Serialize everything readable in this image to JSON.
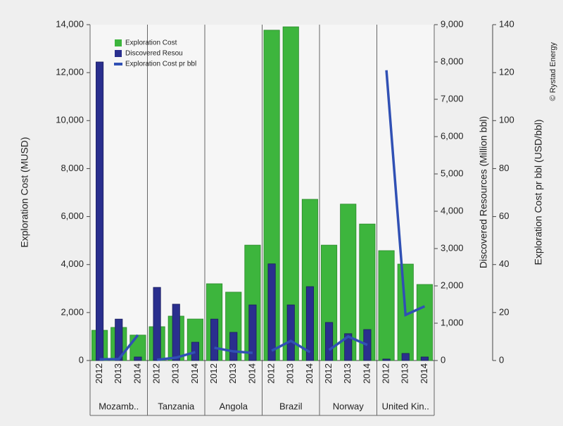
{
  "chart_data": {
    "type": "bar-line",
    "ylabel": "Exploration Cost (MUSD)",
    "y2label": "Discovered Resources (Million bbl)",
    "y3label": "Exploration Cost pr bbl (USD/bbl)",
    "source": "© Rystad Energy",
    "groups": [
      "Mozamb..",
      "Tanzania",
      "Angola",
      "Brazil",
      "Norway",
      "United Kin.."
    ],
    "categories": [
      "2012",
      "2013",
      "2014",
      "2012",
      "2013",
      "2014",
      "2012",
      "2013",
      "2014",
      "2012",
      "2013",
      "2014",
      "2012",
      "2013",
      "2014",
      "2012",
      "2013",
      "2014"
    ],
    "series": [
      {
        "name": "Exploration Cost",
        "color": "#3db53d",
        "axis": "y",
        "kind": "bar",
        "values": [
          1260,
          1380,
          1060,
          1410,
          1850,
          1730,
          3200,
          2850,
          4810,
          13770,
          13910,
          6720,
          4810,
          6520,
          5690,
          4580,
          4020,
          3170
        ]
      },
      {
        "name": "Discovered Resou",
        "color": "#2a2f8e",
        "axis": "y2",
        "kind": "bar",
        "values": [
          8000,
          1110,
          95,
          1960,
          1510,
          490,
          1110,
          755,
          1490,
          2590,
          1490,
          1980,
          1020,
          720,
          830,
          40,
          190,
          95
        ]
      },
      {
        "name": "Exploration Cost pr bbl",
        "color": "#3050b4",
        "axis": "y3",
        "kind": "line",
        "values": [
          0.5,
          0.6,
          10.6,
          0.3,
          1.2,
          3.5,
          5.3,
          3.8,
          3.2,
          4.1,
          8.2,
          3.5,
          4.4,
          10,
          6.5,
          121,
          19,
          22.6
        ]
      }
    ],
    "ylim": [
      0,
      14000
    ],
    "yticks": [
      0,
      {
        "value": 2000,
        "label": "2,000"
      },
      {
        "value": 4000,
        "label": "4,000"
      },
      {
        "value": 6000,
        "label": "6,000"
      },
      {
        "value": 8000,
        "label": "8,000"
      },
      {
        "value": 10000,
        "label": "10,000"
      },
      {
        "value": 12000,
        "label": "12,000"
      },
      {
        "value": 14000,
        "label": "14,000"
      }
    ],
    "y2lim": [
      0,
      9000
    ],
    "y2ticks": [
      0,
      {
        "value": 1000,
        "label": "1,000"
      },
      {
        "value": 2000,
        "label": "2,000"
      },
      {
        "value": 3000,
        "label": "3,000"
      },
      {
        "value": 4000,
        "label": "4,000"
      },
      {
        "value": 5000,
        "label": "5,000"
      },
      {
        "value": 6000,
        "label": "6,000"
      },
      {
        "value": 7000,
        "label": "7,000"
      },
      {
        "value": 8000,
        "label": "8,000"
      },
      {
        "value": 9000,
        "label": "9,000"
      }
    ],
    "y3lim": [
      0,
      140
    ],
    "y3ticks": [
      0,
      20,
      40,
      60,
      80,
      100,
      120,
      140
    ]
  }
}
